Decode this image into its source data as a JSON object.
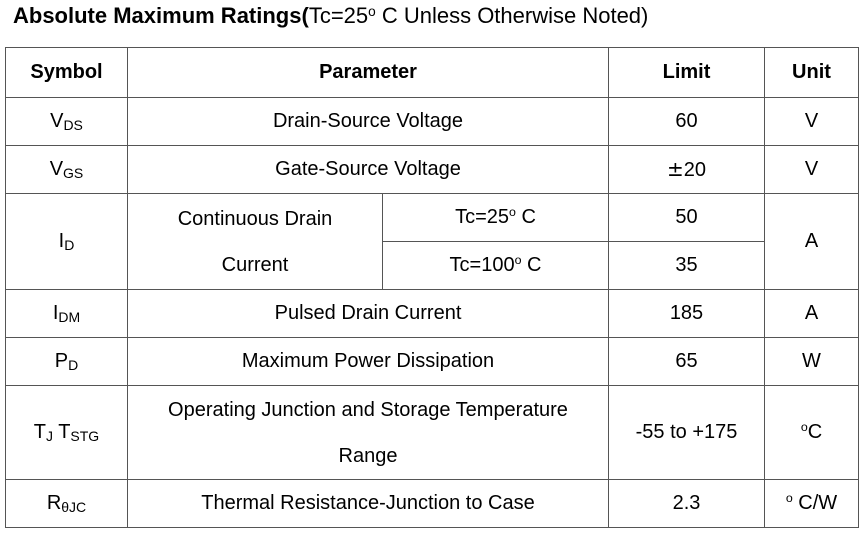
{
  "title": {
    "bold": "Absolute Maximum Ratings(",
    "cond_prefix": "Tc=25",
    "cond_deg": "o",
    "cond_suffix": " C Unless Otherwise Noted)"
  },
  "headers": {
    "symbol": "Symbol",
    "parameter": "Parameter",
    "limit": "Limit",
    "unit": "Unit"
  },
  "rows": {
    "vds": {
      "sym_main": "V",
      "sym_sub": "DS",
      "param": "Drain-Source Voltage",
      "limit": "60",
      "unit": "V"
    },
    "vgs": {
      "sym_main": "V",
      "sym_sub": "GS",
      "param": "Gate-Source Voltage",
      "limit_pm": "±",
      "limit": "20",
      "unit": "V"
    },
    "id": {
      "sym_main": "I",
      "sym_sub": "D",
      "param_line1": "Continuous Drain",
      "param_line2": "Current",
      "cond1_prefix": "Tc=25",
      "cond1_deg": "o",
      "cond1_suffix": " C",
      "cond2_prefix": "Tc=100",
      "cond2_deg": "o",
      "cond2_suffix": " C",
      "limit1": "50",
      "limit2": "35",
      "unit": "A"
    },
    "idm": {
      "sym_main": "I",
      "sym_sub": "DM",
      "param": "Pulsed Drain Current",
      "limit": "185",
      "unit": "A"
    },
    "pd": {
      "sym_main": "P",
      "sym_sub": "D",
      "param": "Maximum Power Dissipation",
      "limit": "65",
      "unit": "W"
    },
    "tj": {
      "sym_main1": "T",
      "sym_sub1": "J",
      "sym_main2": " T",
      "sym_sub2": "STG",
      "param_line1": "Operating Junction and Storage Temperature",
      "param_line2": "Range",
      "limit": "-55 to +175",
      "unit_deg": "o",
      "unit_suffix": "C"
    },
    "rthjc": {
      "sym_main": "R",
      "sym_sub": "θJC",
      "param": "Thermal Resistance-Junction to Case",
      "limit": "2.3",
      "unit_deg": "o",
      "unit_suffix": " C/W"
    }
  }
}
